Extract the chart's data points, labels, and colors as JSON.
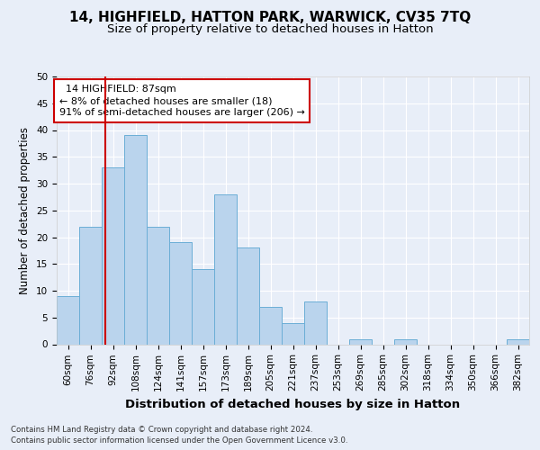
{
  "title1": "14, HIGHFIELD, HATTON PARK, WARWICK, CV35 7TQ",
  "title2": "Size of property relative to detached houses in Hatton",
  "xlabel": "Distribution of detached houses by size in Hatton",
  "ylabel": "Number of detached properties",
  "footer1": "Contains HM Land Registry data © Crown copyright and database right 2024.",
  "footer2": "Contains public sector information licensed under the Open Government Licence v3.0.",
  "bin_labels": [
    "60sqm",
    "76sqm",
    "92sqm",
    "108sqm",
    "124sqm",
    "141sqm",
    "157sqm",
    "173sqm",
    "189sqm",
    "205sqm",
    "221sqm",
    "237sqm",
    "253sqm",
    "269sqm",
    "285sqm",
    "302sqm",
    "318sqm",
    "334sqm",
    "350sqm",
    "366sqm",
    "382sqm"
  ],
  "bar_values": [
    9,
    22,
    33,
    39,
    22,
    19,
    14,
    28,
    18,
    7,
    4,
    8,
    0,
    1,
    0,
    1,
    0,
    0,
    0,
    0,
    1
  ],
  "bar_color": "#bad4ed",
  "bar_edge_color": "#6baed6",
  "annotation_box_text": "  14 HIGHFIELD: 87sqm\n← 8% of detached houses are smaller (18)\n91% of semi-detached houses are larger (206) →",
  "annotation_box_color": "#ffffff",
  "annotation_box_edge_color": "#cc0000",
  "red_line_x": 1.65,
  "ylim": [
    0,
    50
  ],
  "yticks": [
    0,
    5,
    10,
    15,
    20,
    25,
    30,
    35,
    40,
    45,
    50
  ],
  "bg_color": "#e8eef8",
  "plot_bg_color": "#e8eef8",
  "grid_color": "#ffffff",
  "title1_fontsize": 11,
  "title2_fontsize": 9.5,
  "axis_label_fontsize": 8.5,
  "tick_fontsize": 7.5,
  "annotation_fontsize": 8
}
